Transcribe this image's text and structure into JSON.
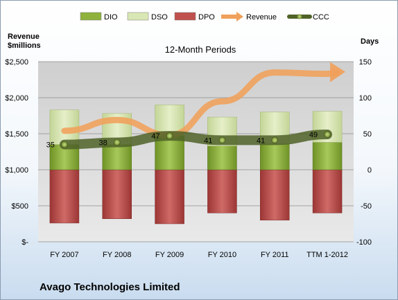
{
  "legend": [
    {
      "label": "DIO",
      "kind": "box",
      "color": "#8fb23c"
    },
    {
      "label": "DSO",
      "kind": "box",
      "color": "#d9e7b4"
    },
    {
      "label": "DPO",
      "kind": "box",
      "color": "#c0504d"
    },
    {
      "label": "Revenue",
      "kind": "arrow",
      "color": "#f0a05a"
    },
    {
      "label": "CCC",
      "kind": "line",
      "color": "#4f6228"
    }
  ],
  "company": "Avago Technologies Limited",
  "chart_data": {
    "type": "bar",
    "title": "12-Month Periods",
    "ylabel_left": "Revenue\n$millions",
    "ylabel_right": "Days",
    "categories": [
      "FY 2007",
      "FY 2008",
      "FY 2009",
      "FY 2010",
      "FY 2011",
      "TTM 1-2012"
    ],
    "left_axis": {
      "min": 0,
      "max": 2500,
      "step": 500,
      "tick_labels": [
        "$-",
        "$500",
        "$1,000",
        "$1,500",
        "$2,000",
        "$2,500"
      ]
    },
    "right_axis": {
      "min": -100,
      "max": 150,
      "step": 50,
      "tick_labels": [
        "-100",
        "-50",
        "0",
        "50",
        "100",
        "150"
      ]
    },
    "grid": true,
    "legend_position": "top",
    "series": [
      {
        "name": "DIO",
        "axis": "right",
        "kind": "stacked-bar",
        "values": [
          35,
          35,
          47,
          33,
          36,
          38
        ]
      },
      {
        "name": "DSO",
        "axis": "right",
        "kind": "stacked-bar",
        "values": [
          48,
          43,
          43,
          40,
          44,
          43
        ]
      },
      {
        "name": "DPO",
        "axis": "right",
        "kind": "negative-bar",
        "values": [
          -74,
          -68,
          -75,
          -60,
          -70,
          -60
        ]
      },
      {
        "name": "Revenue",
        "axis": "left",
        "kind": "trend-arrow",
        "values": [
          1540,
          1690,
          1480,
          1950,
          2350,
          2330
        ]
      },
      {
        "name": "CCC",
        "axis": "right",
        "kind": "line",
        "values": [
          35,
          38,
          47,
          41,
          41,
          49
        ],
        "labels": [
          "35",
          "38",
          "47",
          "41",
          "41",
          "49"
        ]
      }
    ]
  }
}
